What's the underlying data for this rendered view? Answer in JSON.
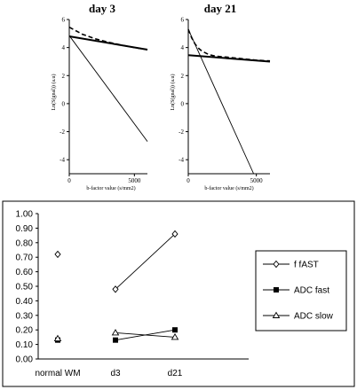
{
  "chart_data": [
    {
      "type": "line",
      "title": "day 3",
      "xlabel": "b-factor value (s/mm2)",
      "ylabel": "Ln(S(gnal)) (a.u)",
      "xlim": [
        0,
        6000
      ],
      "ylim": [
        -5,
        6
      ],
      "xticks": [
        "0",
        "5000"
      ],
      "yticks": [
        "6",
        "4",
        "2",
        "0",
        "-2",
        "-4"
      ],
      "series": [
        {
          "style": "dashed",
          "x": [
            0,
            1000,
            2000,
            3000,
            4000,
            5000,
            6000
          ],
          "y": [
            5.45,
            4.95,
            4.62,
            4.38,
            4.18,
            4.0,
            3.85
          ]
        },
        {
          "style": "thick",
          "x": [
            0,
            6000
          ],
          "y": [
            4.8,
            3.85
          ]
        },
        {
          "style": "thin",
          "x": [
            0,
            6000
          ],
          "y": [
            4.85,
            -2.7
          ]
        }
      ]
    },
    {
      "type": "line",
      "title": "day 21",
      "xlabel": "b-factor value (s/mm2)",
      "ylabel": "Ln(S(gnal)) (a.u)",
      "xlim": [
        0,
        6000
      ],
      "ylim": [
        -5,
        6
      ],
      "xticks": [
        "0",
        "5000"
      ],
      "yticks": [
        "6",
        "4",
        "2",
        "0",
        "-2",
        "-4"
      ],
      "series": [
        {
          "style": "dashed",
          "x": [
            0,
            250,
            500,
            750,
            1000,
            1500,
            2000,
            3000,
            4000,
            5000,
            6000
          ],
          "y": [
            5.3,
            4.7,
            4.25,
            3.95,
            3.75,
            3.5,
            3.38,
            3.3,
            3.2,
            3.1,
            3.05
          ]
        },
        {
          "style": "thick",
          "x": [
            0,
            6000
          ],
          "y": [
            3.45,
            3.0
          ]
        },
        {
          "style": "thin",
          "x": [
            0,
            4800
          ],
          "y": [
            5.3,
            -5.0
          ]
        }
      ]
    },
    {
      "type": "line",
      "categories": [
        "normal WM",
        "d3",
        "d21"
      ],
      "ylim": [
        0,
        1
      ],
      "yticks": [
        "1.00",
        "0.90",
        "0.80",
        "0.70",
        "0.60",
        "0.50",
        "0.40",
        "0.30",
        "0.20",
        "0.10",
        "0.00"
      ],
      "legend_position": "right",
      "series": [
        {
          "name": "f fAST",
          "marker": "diamond",
          "values": [
            0.72,
            0.48,
            0.86
          ]
        },
        {
          "name": "ADC fast",
          "marker": "square",
          "values": [
            0.13,
            0.13,
            0.2
          ]
        },
        {
          "name": "ADC slow",
          "marker": "triangle",
          "values": [
            0.14,
            0.18,
            0.15
          ]
        }
      ]
    }
  ]
}
